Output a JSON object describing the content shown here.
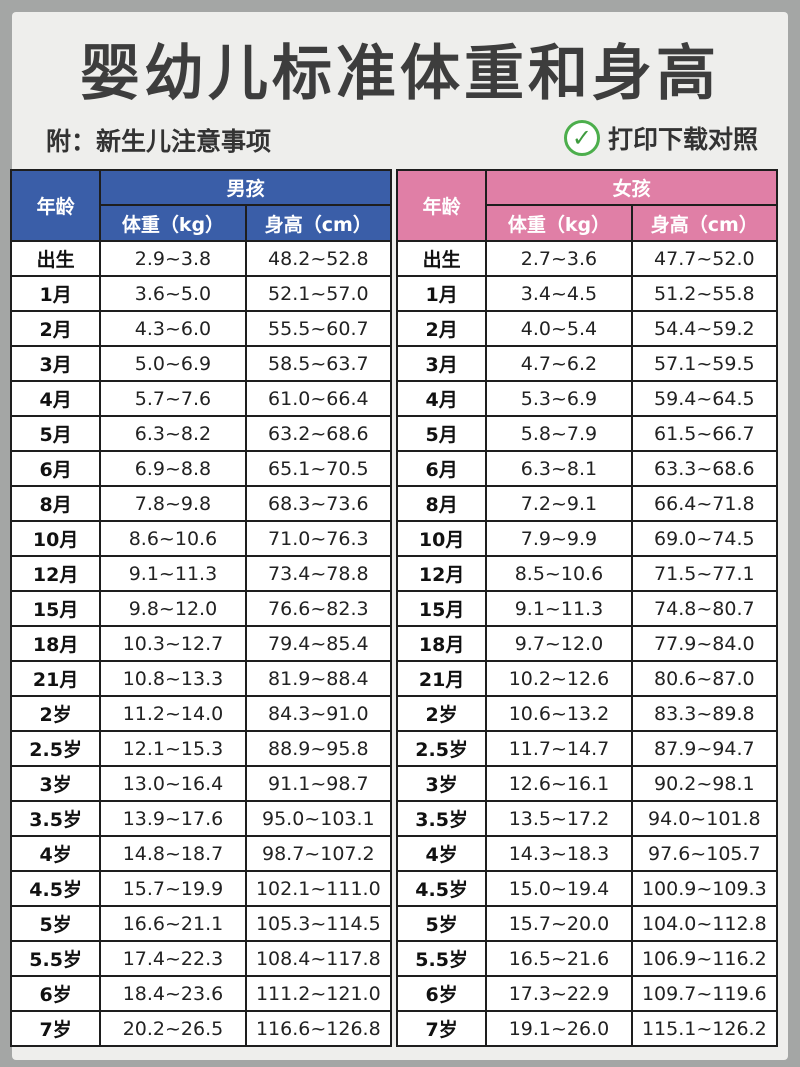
{
  "title": "婴幼儿标准体重和身高",
  "subtitle_left": "附：新生儿注意事项",
  "subtitle_right": "打印下载对照",
  "check_symbol": "✓",
  "colors": {
    "boys_header": "#3a5ea8",
    "girls_header": "#e07fa6",
    "check": "#4cae4c"
  },
  "boys": {
    "group_label": "男孩",
    "age_label": "年龄",
    "weight_label": "体重（kg）",
    "height_label": "身高（cm）",
    "rows": [
      {
        "age": "出生",
        "weight": "2.9~3.8",
        "height": "48.2~52.8"
      },
      {
        "age": "1月",
        "weight": "3.6~5.0",
        "height": "52.1~57.0"
      },
      {
        "age": "2月",
        "weight": "4.3~6.0",
        "height": "55.5~60.7"
      },
      {
        "age": "3月",
        "weight": "5.0~6.9",
        "height": "58.5~63.7"
      },
      {
        "age": "4月",
        "weight": "5.7~7.6",
        "height": "61.0~66.4"
      },
      {
        "age": "5月",
        "weight": "6.3~8.2",
        "height": "63.2~68.6"
      },
      {
        "age": "6月",
        "weight": "6.9~8.8",
        "height": "65.1~70.5"
      },
      {
        "age": "8月",
        "weight": "7.8~9.8",
        "height": "68.3~73.6"
      },
      {
        "age": "10月",
        "weight": "8.6~10.6",
        "height": "71.0~76.3"
      },
      {
        "age": "12月",
        "weight": "9.1~11.3",
        "height": "73.4~78.8"
      },
      {
        "age": "15月",
        "weight": "9.8~12.0",
        "height": "76.6~82.3"
      },
      {
        "age": "18月",
        "weight": "10.3~12.7",
        "height": "79.4~85.4"
      },
      {
        "age": "21月",
        "weight": "10.8~13.3",
        "height": "81.9~88.4"
      },
      {
        "age": "2岁",
        "weight": "11.2~14.0",
        "height": "84.3~91.0"
      },
      {
        "age": "2.5岁",
        "weight": "12.1~15.3",
        "height": "88.9~95.8"
      },
      {
        "age": "3岁",
        "weight": "13.0~16.4",
        "height": "91.1~98.7"
      },
      {
        "age": "3.5岁",
        "weight": "13.9~17.6",
        "height": "95.0~103.1"
      },
      {
        "age": "4岁",
        "weight": "14.8~18.7",
        "height": "98.7~107.2"
      },
      {
        "age": "4.5岁",
        "weight": "15.7~19.9",
        "height": "102.1~111.0"
      },
      {
        "age": "5岁",
        "weight": "16.6~21.1",
        "height": "105.3~114.5"
      },
      {
        "age": "5.5岁",
        "weight": "17.4~22.3",
        "height": "108.4~117.8"
      },
      {
        "age": "6岁",
        "weight": "18.4~23.6",
        "height": "111.2~121.0"
      },
      {
        "age": "7岁",
        "weight": "20.2~26.5",
        "height": "116.6~126.8"
      }
    ]
  },
  "girls": {
    "group_label": "女孩",
    "age_label": "年龄",
    "weight_label": "体重（kg）",
    "height_label": "身高（cm）",
    "rows": [
      {
        "age": "出生",
        "weight": "2.7~3.6",
        "height": "47.7~52.0"
      },
      {
        "age": "1月",
        "weight": "3.4~4.5",
        "height": "51.2~55.8"
      },
      {
        "age": "2月",
        "weight": "4.0~5.4",
        "height": "54.4~59.2"
      },
      {
        "age": "3月",
        "weight": "4.7~6.2",
        "height": "57.1~59.5"
      },
      {
        "age": "4月",
        "weight": "5.3~6.9",
        "height": "59.4~64.5"
      },
      {
        "age": "5月",
        "weight": "5.8~7.9",
        "height": "61.5~66.7"
      },
      {
        "age": "6月",
        "weight": "6.3~8.1",
        "height": "63.3~68.6"
      },
      {
        "age": "8月",
        "weight": "7.2~9.1",
        "height": "66.4~71.8"
      },
      {
        "age": "10月",
        "weight": "7.9~9.9",
        "height": "69.0~74.5"
      },
      {
        "age": "12月",
        "weight": "8.5~10.6",
        "height": "71.5~77.1"
      },
      {
        "age": "15月",
        "weight": "9.1~11.3",
        "height": "74.8~80.7"
      },
      {
        "age": "18月",
        "weight": "9.7~12.0",
        "height": "77.9~84.0"
      },
      {
        "age": "21月",
        "weight": "10.2~12.6",
        "height": "80.6~87.0"
      },
      {
        "age": "2岁",
        "weight": "10.6~13.2",
        "height": "83.3~89.8"
      },
      {
        "age": "2.5岁",
        "weight": "11.7~14.7",
        "height": "87.9~94.7"
      },
      {
        "age": "3岁",
        "weight": "12.6~16.1",
        "height": "90.2~98.1"
      },
      {
        "age": "3.5岁",
        "weight": "13.5~17.2",
        "height": "94.0~101.8"
      },
      {
        "age": "4岁",
        "weight": "14.3~18.3",
        "height": "97.6~105.7"
      },
      {
        "age": "4.5岁",
        "weight": "15.0~19.4",
        "height": "100.9~109.3"
      },
      {
        "age": "5岁",
        "weight": "15.7~20.0",
        "height": "104.0~112.8"
      },
      {
        "age": "5.5岁",
        "weight": "16.5~21.6",
        "height": "106.9~116.2"
      },
      {
        "age": "6岁",
        "weight": "17.3~22.9",
        "height": "109.7~119.6"
      },
      {
        "age": "7岁",
        "weight": "19.1~26.0",
        "height": "115.1~126.2"
      }
    ]
  }
}
